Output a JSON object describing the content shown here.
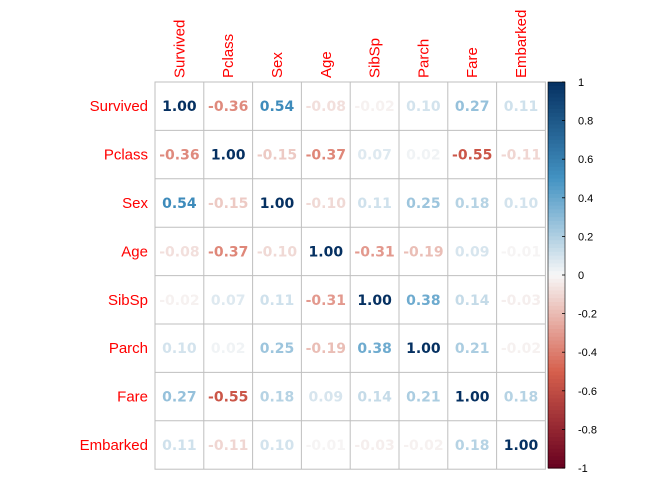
{
  "chart_data": {
    "type": "heatmap",
    "variables": [
      "Survived",
      "Pclass",
      "Sex",
      "Age",
      "SibSp",
      "Parch",
      "Fare",
      "Embarked"
    ],
    "matrix": [
      [
        1.0,
        -0.36,
        0.54,
        -0.08,
        -0.02,
        0.1,
        0.27,
        0.11
      ],
      [
        -0.36,
        1.0,
        -0.15,
        -0.37,
        0.07,
        0.02,
        -0.55,
        -0.11
      ],
      [
        0.54,
        -0.15,
        1.0,
        -0.1,
        0.11,
        0.25,
        0.18,
        0.1
      ],
      [
        -0.08,
        -0.37,
        -0.1,
        1.0,
        -0.31,
        -0.19,
        0.09,
        -0.01
      ],
      [
        -0.02,
        0.07,
        0.11,
        -0.31,
        1.0,
        0.38,
        0.14,
        -0.03
      ],
      [
        0.1,
        0.02,
        0.25,
        -0.19,
        0.38,
        1.0,
        0.21,
        -0.02
      ],
      [
        0.27,
        -0.55,
        0.18,
        0.09,
        0.14,
        0.21,
        1.0,
        0.18
      ],
      [
        0.11,
        -0.11,
        0.1,
        -0.01,
        -0.03,
        -0.02,
        0.18,
        1.0
      ]
    ],
    "colorbar": {
      "range": [
        -1,
        1
      ],
      "ticks": [
        "1",
        "0.8",
        "0.6",
        "0.4",
        "0.2",
        "0",
        "-0.2",
        "-0.4",
        "-0.6",
        "-0.8",
        "-1"
      ],
      "tick_values": [
        1,
        0.8,
        0.6,
        0.4,
        0.2,
        0,
        -0.2,
        -0.4,
        -0.6,
        -0.8,
        -1
      ],
      "colors": {
        "neg_end": "#67001f",
        "neg_mid": "#d6604d",
        "neutral": "#f7f7f7",
        "pos_mid": "#4393c3",
        "pos_end": "#053061"
      }
    },
    "label_color": "#ff0000",
    "grid_color": "#bfbfbf"
  }
}
